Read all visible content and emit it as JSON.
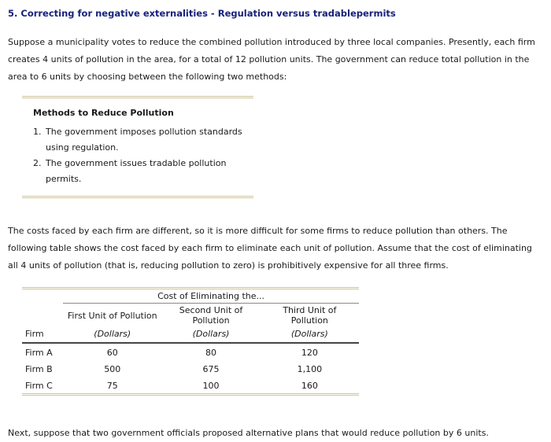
{
  "title": "5. Correcting for negative externalities - Regulation versus tradablepermits",
  "intro": "Suppose a municipality votes to reduce the combined pollution introduced by three local companies. Presently, each firm creates 4 units of pollution in the area, for a total of 12 pollution units. The government can reduce total pollution in the area to 6 units by choosing between the following two methods:",
  "methods": {
    "heading": "Methods to Reduce Pollution",
    "items": [
      "The government imposes pollution standards using regulation.",
      "The government issues tradable pollution permits."
    ]
  },
  "costs_paragraph": "The costs faced by each firm are different, so it is more difficult for some firms to reduce pollution than others. The following table shows the cost faced by each firm to eliminate each unit of pollution. Assume that the cost of eliminating all 4 units of pollution (that is, reducing pollution to zero) is prohibitively expensive for all three firms.",
  "table": {
    "span_header": "Cost of Eliminating the...",
    "firm_header": "Firm",
    "unit_label": "(Dollars)",
    "columns": [
      "First Unit of Pollution",
      "Second Unit of Pollution",
      "Third Unit of Pollution"
    ],
    "rows": [
      {
        "firm": "Firm A",
        "values": [
          "60",
          "80",
          "120"
        ]
      },
      {
        "firm": "Firm B",
        "values": [
          "500",
          "675",
          "1,100"
        ]
      },
      {
        "firm": "Firm C",
        "values": [
          "75",
          "100",
          "160"
        ]
      }
    ]
  },
  "outro": "Next, suppose that two government officials proposed alternative plans that would reduce pollution by 6 units."
}
